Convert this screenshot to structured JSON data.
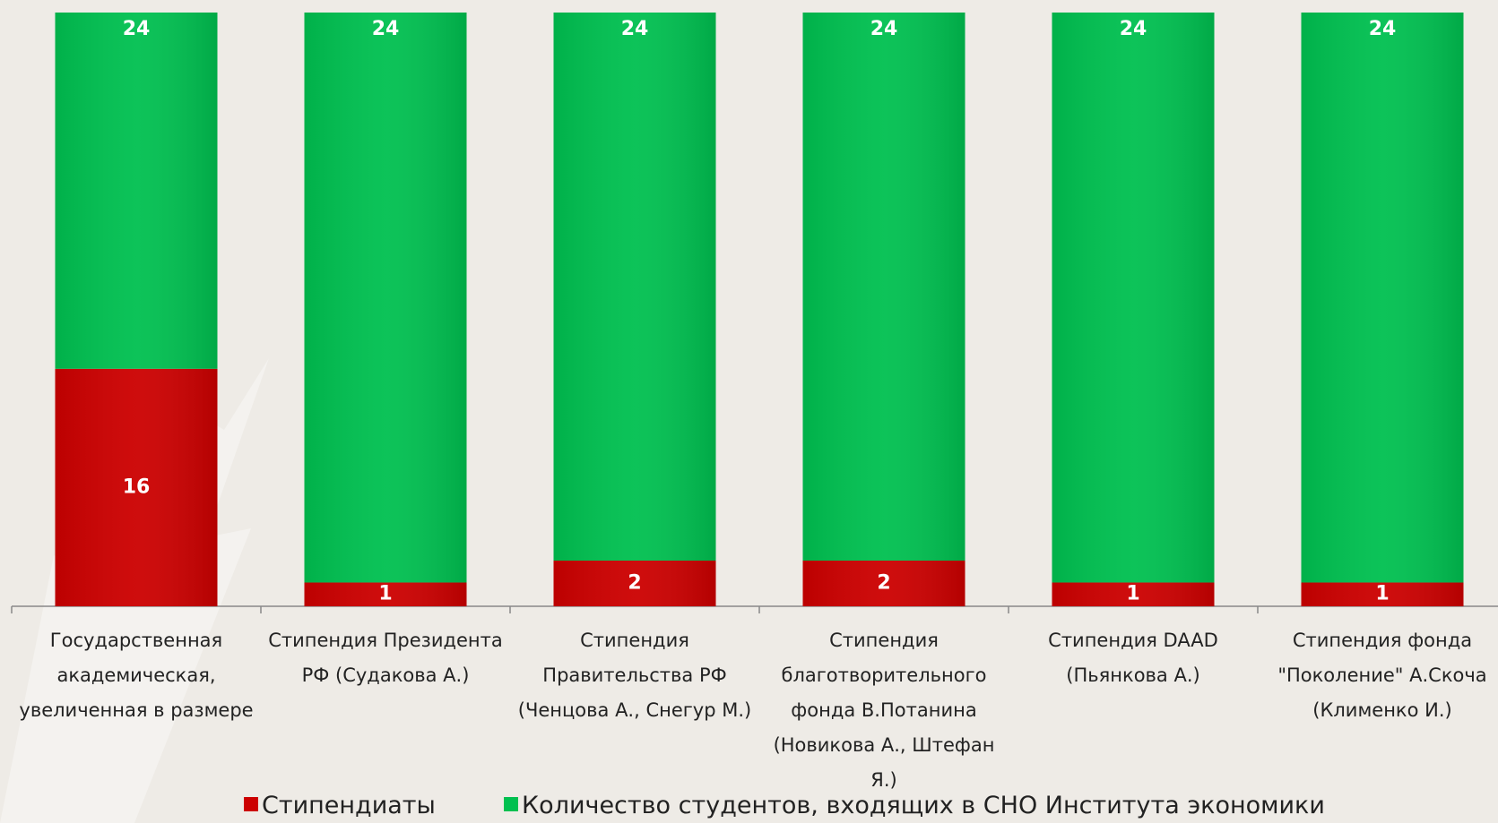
{
  "chart_data": {
    "type": "bar",
    "stacking": "percent",
    "categories": [
      "Государственная академическая, увеличенная в размере",
      "Стипендия Президента РФ (Судакова А.)",
      "Стипендия Правительства РФ (Ченцова А., Снегур М.)",
      "Стипендия благотворительного фонда В.Потанина (Новикова А., Штефан Я.)",
      "Стипендия DAAD (Пьянкова А.)",
      "Стипендия фонда \"Поколение\" А.Скоча (Клименко И.)"
    ],
    "series": [
      {
        "name": "Стипендиаты",
        "color": "#cc0000",
        "values": [
          16,
          1,
          2,
          2,
          1,
          1
        ]
      },
      {
        "name": "Количество студентов, входящих в СНО Института экономики",
        "color": "#00c050",
        "values": [
          24,
          24,
          24,
          24,
          24,
          24
        ]
      }
    ],
    "legend": "bottom"
  }
}
